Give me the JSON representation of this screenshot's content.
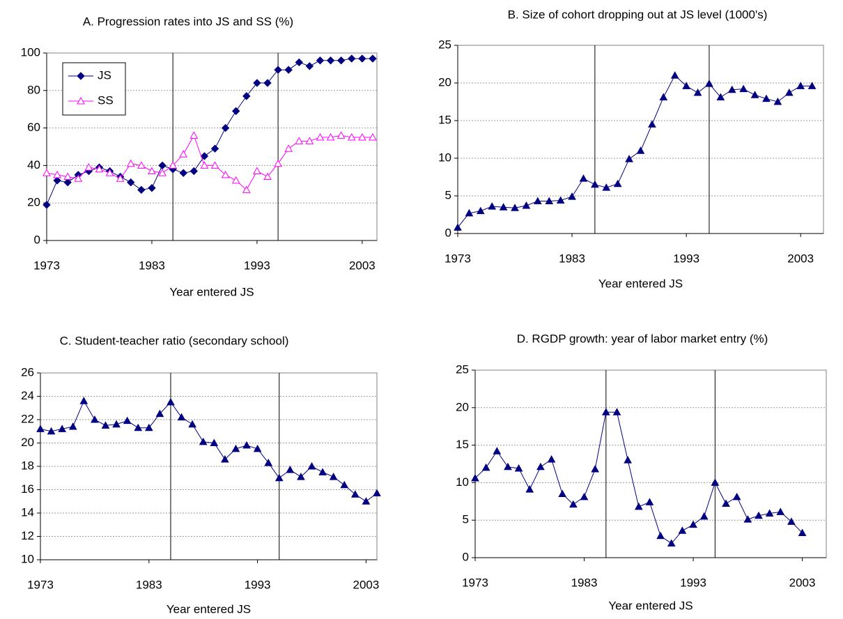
{
  "chart_data": [
    {
      "type": "line",
      "title": "A. Progression rates into JS and SS (%)",
      "x_label": "Year entered JS",
      "x": [
        1973,
        1974,
        1975,
        1976,
        1977,
        1978,
        1979,
        1980,
        1981,
        1982,
        1983,
        1984,
        1985,
        1986,
        1987,
        1988,
        1989,
        1990,
        1991,
        1992,
        1993,
        1994,
        1995,
        1996,
        1997,
        1998,
        1999,
        2000,
        2001,
        2002,
        2003,
        2004
      ],
      "series": [
        {
          "name": "JS",
          "color": "#000080",
          "marker": "diamond",
          "values": [
            19,
            32,
            31,
            35,
            37,
            39,
            37,
            34,
            31,
            27,
            28,
            40,
            38,
            36,
            37,
            45,
            49,
            60,
            69,
            77,
            84,
            84,
            91,
            91,
            95,
            93,
            96,
            96,
            96,
            97,
            97,
            97
          ]
        },
        {
          "name": "SS",
          "color": "#ff00ff",
          "marker": "triangle-open",
          "values": [
            36,
            35,
            34,
            33,
            39,
            38,
            36,
            33,
            41,
            40,
            37,
            36,
            40,
            46,
            56,
            40,
            40,
            35,
            32,
            27,
            37,
            34,
            41,
            49,
            53,
            53,
            55,
            55,
            56,
            55,
            55,
            55
          ]
        }
      ],
      "xlim": [
        1973,
        2004.4
      ],
      "xticks": [
        1973,
        1983,
        1993,
        2003
      ],
      "ylim": [
        0,
        100
      ],
      "yticks": [
        0,
        20,
        40,
        60,
        80,
        100
      ],
      "vlines": [
        1985,
        1995
      ],
      "grid": true,
      "legend": "upper left"
    },
    {
      "type": "line",
      "title": "B. Size of cohort dropping out at JS level  (1000's)",
      "x_label": "Year entered JS",
      "x": [
        1973,
        1974,
        1975,
        1976,
        1977,
        1978,
        1979,
        1980,
        1981,
        1982,
        1983,
        1984,
        1985,
        1986,
        1987,
        1988,
        1989,
        1990,
        1991,
        1992,
        1993,
        1994,
        1995,
        1996,
        1997,
        1998,
        1999,
        2000,
        2001,
        2002,
        2003,
        2004
      ],
      "series": [
        {
          "color": "#000080",
          "marker": "triangle",
          "values": [
            0.8,
            2.7,
            3.0,
            3.6,
            3.5,
            3.4,
            3.7,
            4.3,
            4.3,
            4.4,
            4.9,
            7.3,
            6.5,
            6.1,
            6.6,
            9.9,
            11.0,
            14.5,
            18.1,
            21.0,
            19.6,
            18.7,
            19.9,
            18.1,
            19.1,
            19.2,
            18.4,
            17.9,
            17.5,
            18.7,
            19.6,
            19.6
          ]
        }
      ],
      "xlim": [
        1973,
        2005
      ],
      "xticks": [
        1973,
        1983,
        1993,
        2003
      ],
      "ylim": [
        0,
        25
      ],
      "yticks": [
        0,
        5,
        10,
        15,
        20,
        25
      ],
      "vlines": [
        1985,
        1995
      ],
      "grid": true
    },
    {
      "type": "line",
      "title": "C. Student-teacher ratio (secondary school)",
      "x_label": "Year entered JS",
      "x": [
        1973,
        1974,
        1975,
        1976,
        1977,
        1978,
        1979,
        1980,
        1981,
        1982,
        1983,
        1984,
        1985,
        1986,
        1987,
        1988,
        1989,
        1990,
        1991,
        1992,
        1993,
        1994,
        1995,
        1996,
        1997,
        1998,
        1999,
        2000,
        2001,
        2002,
        2003,
        2004
      ],
      "series": [
        {
          "color": "#000080",
          "marker": "triangle",
          "values": [
            21.2,
            21.0,
            21.2,
            21.4,
            23.6,
            22.0,
            21.5,
            21.6,
            21.9,
            21.3,
            21.3,
            22.5,
            23.5,
            22.2,
            21.6,
            20.1,
            20.0,
            18.6,
            19.5,
            19.8,
            19.5,
            18.3,
            17.0,
            17.7,
            17.1,
            18.0,
            17.5,
            17.1,
            16.4,
            15.6,
            15.0,
            15.7
          ]
        }
      ],
      "xlim": [
        1973,
        2004
      ],
      "xticks": [
        1973,
        1983,
        1993,
        2003
      ],
      "ylim": [
        10,
        26
      ],
      "yticks": [
        10,
        12,
        14,
        16,
        18,
        20,
        22,
        24,
        26
      ],
      "vlines": [
        1985,
        1995
      ],
      "grid": true
    },
    {
      "type": "line",
      "title": "D. RGDP growth: year of labor market entry (%)",
      "x_label": "Year entered JS",
      "x": [
        1973,
        1974,
        1975,
        1976,
        1977,
        1978,
        1979,
        1980,
        1981,
        1982,
        1983,
        1984,
        1985,
        1986,
        1987,
        1988,
        1989,
        1990,
        1991,
        1992,
        1993,
        1994,
        1995,
        1996,
        1997,
        1998,
        1999,
        2000,
        2001,
        2002,
        2003
      ],
      "series": [
        {
          "color": "#000080",
          "marker": "triangle",
          "values": [
            10.6,
            12.0,
            14.2,
            12.1,
            11.9,
            9.1,
            12.1,
            13.1,
            8.5,
            7.1,
            8.1,
            11.8,
            19.4,
            19.4,
            13.0,
            6.8,
            7.4,
            2.9,
            1.9,
            3.6,
            4.4,
            5.5,
            10.0,
            7.2,
            8.1,
            5.1,
            5.6,
            5.9,
            6.1,
            4.8,
            3.3
          ]
        }
      ],
      "xlim": [
        1973,
        2005.2
      ],
      "xticks": [
        1973,
        1983,
        1993,
        2003
      ],
      "ylim": [
        0,
        25
      ],
      "yticks": [
        0,
        5,
        10,
        15,
        20,
        25
      ],
      "vlines": [
        1985,
        1995
      ],
      "grid": true
    }
  ]
}
